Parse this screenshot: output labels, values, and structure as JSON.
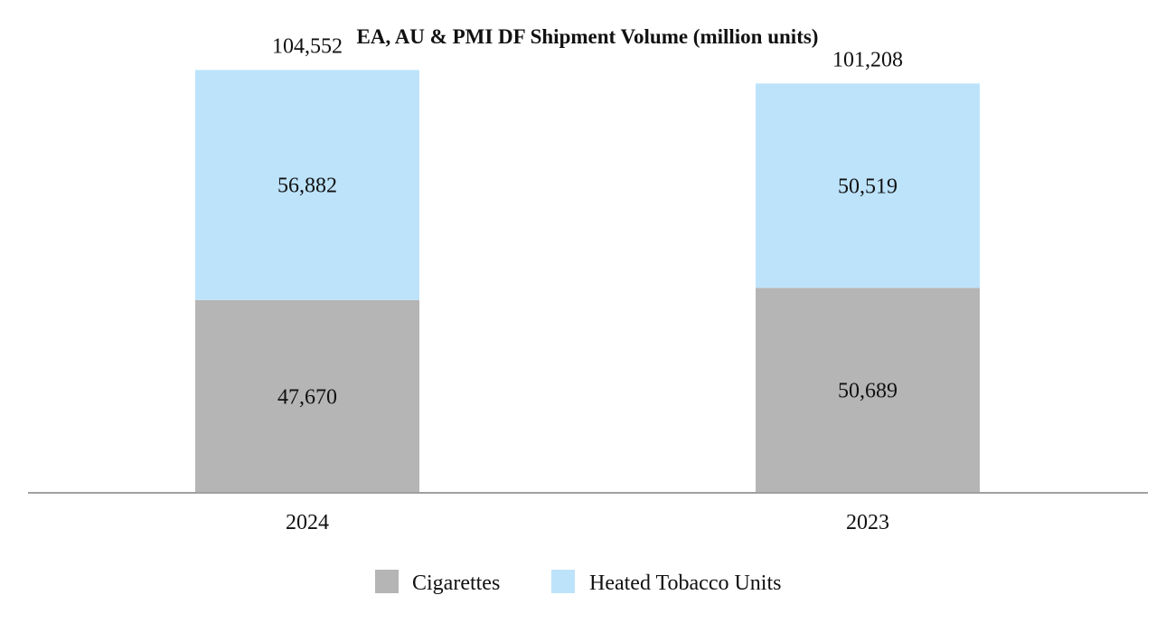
{
  "chart_data": {
    "type": "bar",
    "stacked": true,
    "title": "EA, AU & PMI DF Shipment Volume (million units)",
    "categories": [
      "2024",
      "2023"
    ],
    "series": [
      {
        "name": "Cigarettes",
        "values": [
          47670,
          50689
        ],
        "color": "#b5b5b5"
      },
      {
        "name": "Heated Tobacco Units",
        "values": [
          56882,
          50519
        ],
        "color": "#bde3fb"
      }
    ],
    "segment_labels": [
      [
        "47,670",
        "50,689"
      ],
      [
        "56,882",
        "50,519"
      ]
    ],
    "totals": [
      104552,
      101208
    ],
    "total_labels": [
      "104,552",
      "101,208"
    ],
    "xlabel": "",
    "ylabel": "",
    "ylim": [
      0,
      110000
    ],
    "grid": false,
    "legend_position": "bottom-center",
    "axis_color": "#a0a0a0"
  }
}
